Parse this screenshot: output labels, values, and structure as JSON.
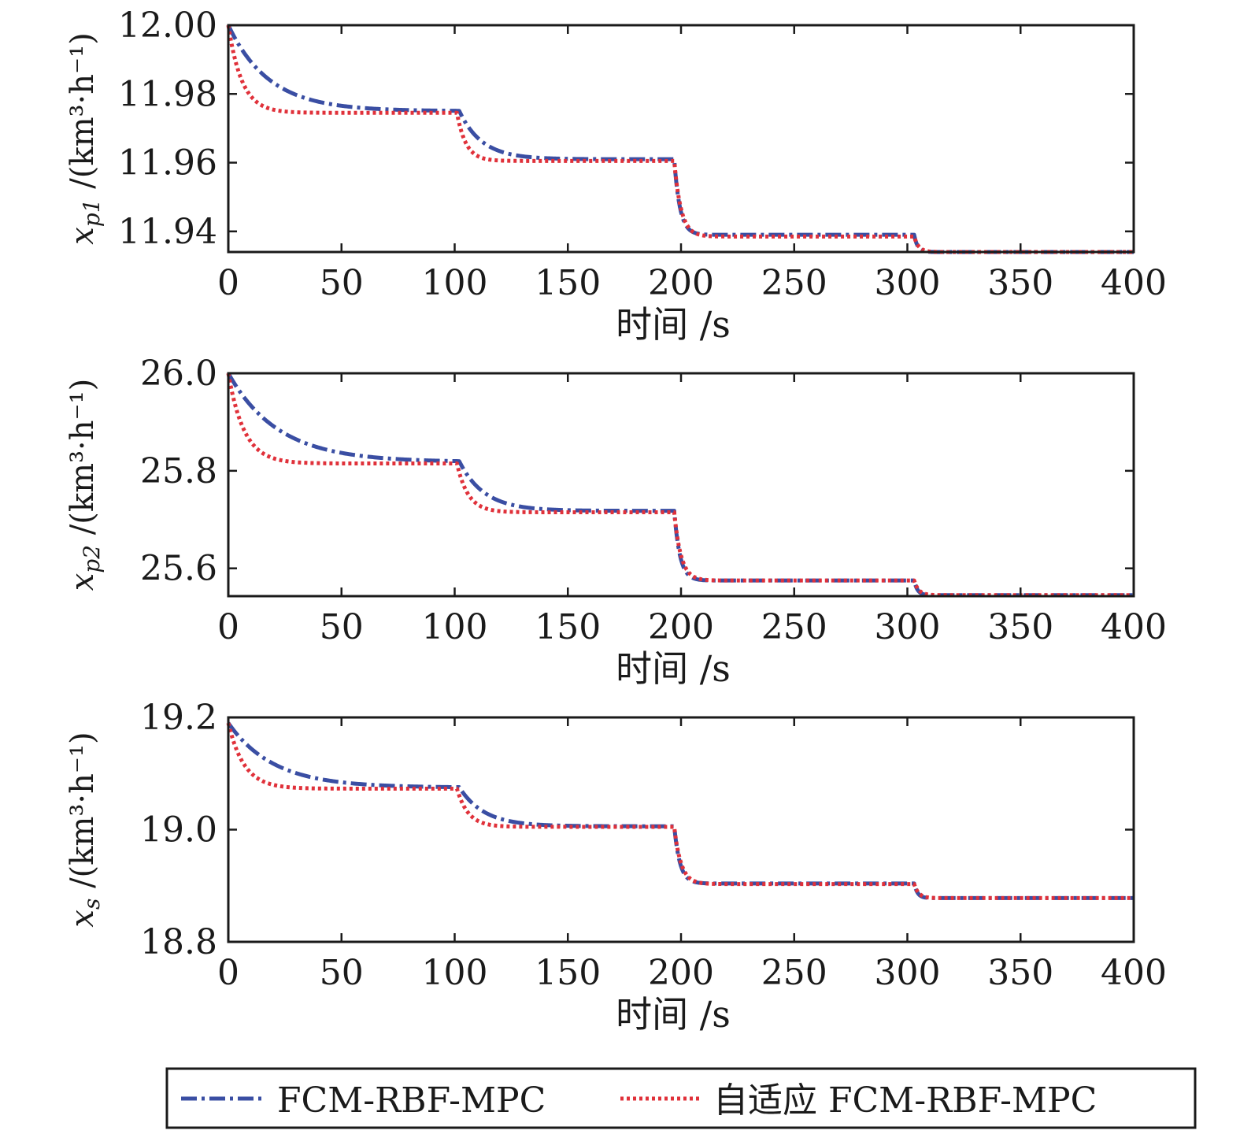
{
  "legend": {
    "items": [
      {
        "label": "FCM-RBF-MPC",
        "color": "#3a4ea3",
        "dash": "dashdot"
      },
      {
        "label": "自适应 FCM-RBF-MPC",
        "color": "#e0313a",
        "dash": "dotted"
      }
    ]
  },
  "chart_data": [
    {
      "type": "line",
      "xlabel": "时间 /s",
      "ylabel": "x_p1 /(km³·h⁻¹)",
      "ylabel_parts": {
        "var": "x",
        "sub": "p1",
        "unit": "/(km³·h⁻¹)"
      },
      "xlim": [
        0,
        400
      ],
      "ylim": [
        11.934,
        12.0
      ],
      "xticks": [
        0,
        50,
        100,
        150,
        200,
        250,
        300,
        350,
        400
      ],
      "yticks": [
        11.94,
        11.96,
        11.98,
        12.0
      ],
      "ytick_labels": [
        "11.94",
        "11.96",
        "11.98",
        "12.00"
      ],
      "grid": false,
      "series": [
        {
          "name": "FCM-RBF-MPC",
          "color": "#3a4ea3",
          "dash": "dashdot",
          "start": 12.0,
          "taus": [
            18,
            10,
            2.5,
            1.5
          ],
          "delays": [
            0,
            2,
            0,
            0
          ],
          "segments": [
            [
              0,
              11.975
            ],
            [
              100,
              11.961
            ],
            [
              197,
              11.939
            ],
            [
              303,
              11.934
            ]
          ]
        },
        {
          "name": "自适应 FCM-RBF-MPC",
          "color": "#e0313a",
          "dash": "dotted",
          "start": 12.0,
          "taus": [
            6,
            4,
            3,
            2
          ],
          "delays": [
            0,
            1,
            0,
            0
          ],
          "segments": [
            [
              0,
              11.9745
            ],
            [
              100,
              11.9605
            ],
            [
              197,
              11.9385
            ],
            [
              303,
              11.934
            ]
          ]
        }
      ]
    },
    {
      "type": "line",
      "xlabel": "时间 /s",
      "ylabel": "x_p2 /(km³·h⁻¹)",
      "ylabel_parts": {
        "var": "x",
        "sub": "p2",
        "unit": "/(km³·h⁻¹)"
      },
      "xlim": [
        0,
        400
      ],
      "ylim": [
        25.543,
        26.0
      ],
      "xticks": [
        0,
        50,
        100,
        150,
        200,
        250,
        300,
        350,
        400
      ],
      "yticks": [
        25.6,
        25.8,
        26.0
      ],
      "ytick_labels": [
        "25.6",
        "25.8",
        "26.0"
      ],
      "grid": false,
      "series": [
        {
          "name": "FCM-RBF-MPC",
          "color": "#3a4ea3",
          "dash": "dashdot",
          "start": 26.0,
          "taus": [
            22,
            11,
            2.5,
            1.5
          ],
          "delays": [
            0,
            2,
            0,
            0
          ],
          "segments": [
            [
              0,
              25.818
            ],
            [
              100,
              25.718
            ],
            [
              197,
              25.575
            ],
            [
              303,
              25.545
            ]
          ]
        },
        {
          "name": "自适应 FCM-RBF-MPC",
          "color": "#e0313a",
          "dash": "dotted",
          "start": 26.0,
          "taus": [
            7,
            5,
            3,
            2
          ],
          "delays": [
            0,
            1,
            0,
            0
          ],
          "segments": [
            [
              0,
              25.815
            ],
            [
              100,
              25.715
            ],
            [
              197,
              25.575
            ],
            [
              303,
              25.545
            ]
          ]
        }
      ]
    },
    {
      "type": "line",
      "xlabel": "时间 /s",
      "ylabel": "x_s /(km³·h⁻¹)",
      "ylabel_parts": {
        "var": "x",
        "sub": "s",
        "unit": "/(km³·h⁻¹)"
      },
      "xlim": [
        0,
        400
      ],
      "ylim": [
        18.8,
        19.2
      ],
      "xticks": [
        0,
        50,
        100,
        150,
        200,
        250,
        300,
        350,
        400
      ],
      "yticks": [
        18.8,
        19.0,
        19.2
      ],
      "ytick_labels": [
        "18.8",
        "19.0",
        "19.2"
      ],
      "grid": false,
      "series": [
        {
          "name": "FCM-RBF-MPC",
          "color": "#3a4ea3",
          "dash": "dashdot",
          "start": 19.19,
          "taus": [
            20,
            11,
            2.5,
            1.5
          ],
          "delays": [
            0,
            2,
            0,
            0
          ],
          "segments": [
            [
              0,
              19.075
            ],
            [
              100,
              19.006
            ],
            [
              197,
              18.904
            ],
            [
              303,
              18.878
            ]
          ]
        },
        {
          "name": "自适应 FCM-RBF-MPC",
          "color": "#e0313a",
          "dash": "dotted",
          "start": 19.19,
          "taus": [
            7,
            5,
            3,
            2
          ],
          "delays": [
            0,
            1,
            0,
            0
          ],
          "segments": [
            [
              0,
              19.073
            ],
            [
              100,
              19.005
            ],
            [
              197,
              18.903
            ],
            [
              303,
              18.878
            ]
          ]
        }
      ]
    }
  ]
}
